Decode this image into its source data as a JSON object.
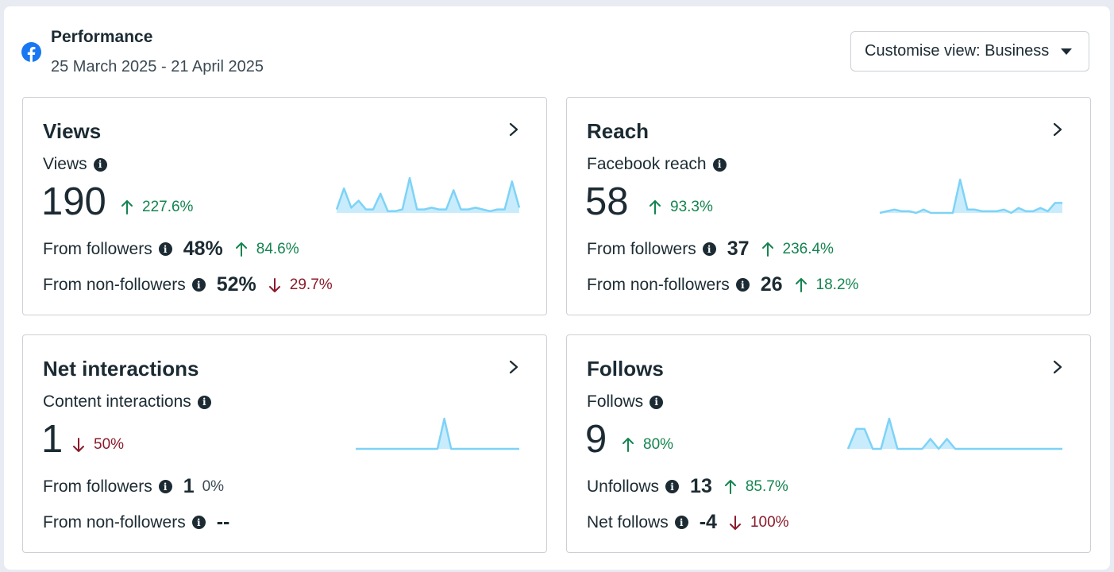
{
  "header": {
    "title": "Performance",
    "date_range": "25 March 2025 - 21 April 2025",
    "customise_label": "Customise view: Business"
  },
  "colors": {
    "up": "#148450",
    "down": "#8a1b2b",
    "facebook_blue": "#1877f2",
    "spark_line": "#7dd3f7",
    "spark_fill": "#c9ecfc"
  },
  "cards": {
    "views": {
      "title": "Views",
      "metric_label": "Views",
      "value": "190",
      "change": "227.6%",
      "rows": [
        {
          "label": "From followers",
          "value": "48%",
          "change": "84.6%"
        },
        {
          "label": "From non-followers",
          "value": "52%",
          "change": "29.7%"
        }
      ],
      "sparkline": [
        0.1,
        0.7,
        0.15,
        0.35,
        0.1,
        0.1,
        0.55,
        0.05,
        0.05,
        0.1,
        1.0,
        0.1,
        0.1,
        0.15,
        0.1,
        0.1,
        0.65,
        0.1,
        0.1,
        0.15,
        0.1,
        0.05,
        0.1,
        0.1,
        0.9,
        0.15
      ]
    },
    "reach": {
      "title": "Reach",
      "metric_label": "Facebook reach",
      "value": "58",
      "change": "93.3%",
      "rows": [
        {
          "label": "From followers",
          "value": "37",
          "change": "236.4%"
        },
        {
          "label": "From non-followers",
          "value": "26",
          "change": "18.2%"
        }
      ],
      "sparkline": [
        0.0,
        0.05,
        0.1,
        0.05,
        0.05,
        0.0,
        0.1,
        0.0,
        0.0,
        0.0,
        0.0,
        1.0,
        0.1,
        0.1,
        0.05,
        0.05,
        0.05,
        0.1,
        0.0,
        0.15,
        0.05,
        0.05,
        0.15,
        0.05,
        0.3,
        0.3
      ]
    },
    "interactions": {
      "title": "Net interactions",
      "metric_label": "Content interactions",
      "value": "1",
      "change": "50%",
      "rows": [
        {
          "label": "From followers",
          "value": "1",
          "change": "0%"
        },
        {
          "label": "From non-followers",
          "value": "--"
        }
      ],
      "sparkline": [
        0,
        0,
        0,
        0,
        0,
        0,
        0,
        0,
        0,
        0,
        0,
        0,
        0,
        1.0,
        0,
        0,
        0,
        0,
        0,
        0,
        0,
        0,
        0,
        0,
        0
      ]
    },
    "follows": {
      "title": "Follows",
      "metric_label": "Follows",
      "value": "9",
      "change": "80%",
      "rows": [
        {
          "label": "Unfollows",
          "value": "13",
          "change": "85.7%"
        },
        {
          "label": "Net follows",
          "value": "-4",
          "change": "100%"
        }
      ],
      "sparkline": [
        0,
        0.66,
        0.66,
        0,
        0,
        1.0,
        0,
        0,
        0,
        0,
        0.33,
        0,
        0.33,
        0,
        0,
        0,
        0,
        0,
        0,
        0,
        0,
        0,
        0,
        0,
        0,
        0,
        0
      ]
    }
  }
}
